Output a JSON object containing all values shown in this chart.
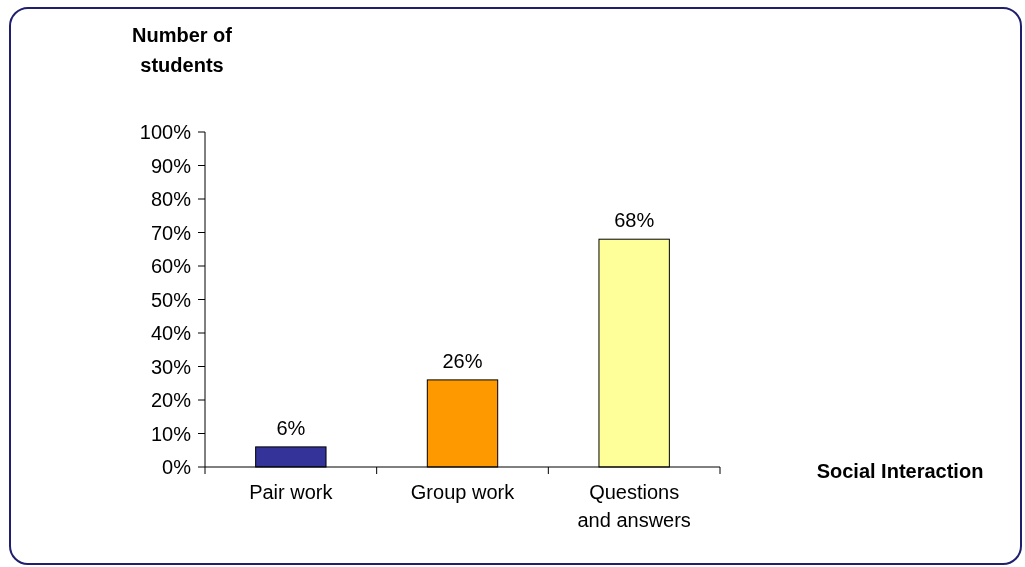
{
  "chart_data": {
    "type": "bar",
    "xlabel": "Social Interaction",
    "ylabel": "Number of students",
    "categories": [
      "Pair work",
      "Group work",
      "Questions and answers"
    ],
    "values": [
      6,
      26,
      68
    ],
    "colors": [
      "#333399",
      "#ff9900",
      "#ffff99"
    ],
    "value_labels": [
      "6%",
      "26%",
      "68%"
    ],
    "ylim": [
      0,
      100
    ],
    "yticks": [
      {
        "value": 0,
        "label": "0%"
      },
      {
        "value": 10,
        "label": "10%"
      },
      {
        "value": 20,
        "label": "20%"
      },
      {
        "value": 30,
        "label": "30%"
      },
      {
        "value": 40,
        "label": "40%"
      },
      {
        "value": 50,
        "label": "50%"
      },
      {
        "value": 60,
        "label": "60%"
      },
      {
        "value": 70,
        "label": "70%"
      },
      {
        "value": 80,
        "label": "80%"
      },
      {
        "value": 90,
        "label": "90%"
      },
      {
        "value": 100,
        "label": "100%"
      }
    ],
    "grid": false
  }
}
